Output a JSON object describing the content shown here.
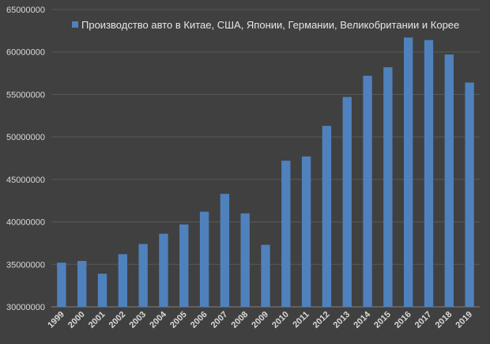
{
  "chart_data": {
    "type": "bar",
    "title": "",
    "xlabel": "",
    "ylabel": "",
    "series": [
      {
        "name": "Производство авто в Китае, США, Японии, Германии, Великобритании и Корее",
        "color": "#4f81bd",
        "values": [
          35200000,
          35400000,
          33900000,
          36200000,
          37400000,
          38600000,
          39700000,
          41200000,
          43300000,
          41000000,
          37300000,
          47200000,
          47700000,
          51300000,
          54700000,
          57200000,
          58200000,
          61700000,
          61400000,
          59700000,
          56400000
        ]
      }
    ],
    "categories": [
      "1999",
      "2000",
      "2001",
      "2002",
      "2003",
      "2004",
      "2005",
      "2006",
      "2007",
      "2008",
      "2009",
      "2010",
      "2011",
      "2012",
      "2013",
      "2014",
      "2015",
      "2016",
      "2017",
      "2018",
      "2019"
    ],
    "y_ticks": [
      "30000000",
      "35000000",
      "40000000",
      "45000000",
      "50000000",
      "55000000",
      "60000000",
      "65000000"
    ],
    "ylim": [
      30000000,
      65000000
    ],
    "grid": true,
    "legend_position": "top"
  }
}
